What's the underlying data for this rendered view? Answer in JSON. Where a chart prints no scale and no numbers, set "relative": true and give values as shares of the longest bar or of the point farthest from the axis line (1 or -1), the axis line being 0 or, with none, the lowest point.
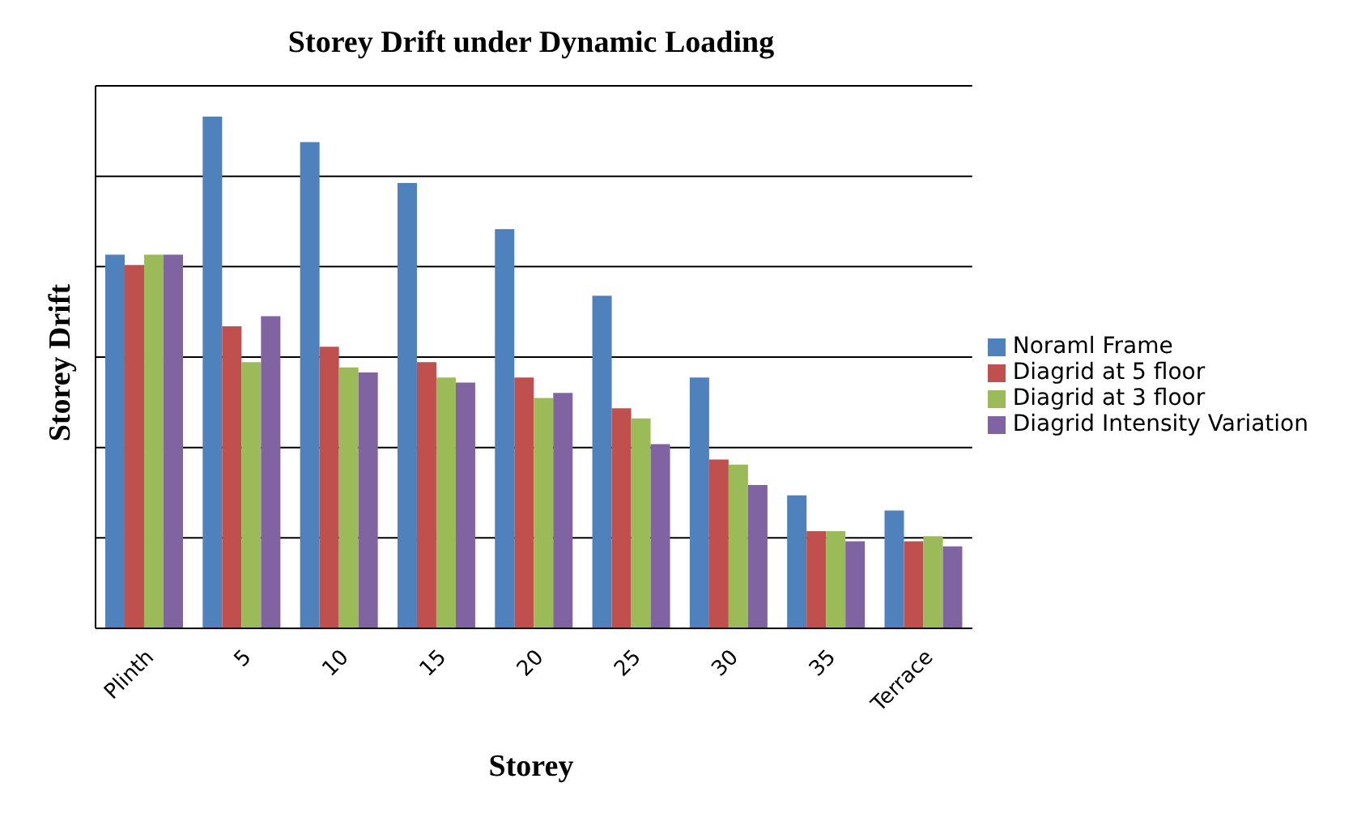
{
  "chart_data": {
    "type": "bar",
    "title": "Storey Drift under Dynamic Loading",
    "xlabel": "Storey",
    "ylabel": "Storey Drift",
    "relative": true,
    "categories": [
      "Plinth",
      "5",
      "10",
      "15",
      "20",
      "25",
      "30",
      "35",
      "Terrace"
    ],
    "series": [
      {
        "name": "Noraml Frame",
        "color": "#4f81bd",
        "values": [
          0.73,
          1,
          0.95,
          0.87,
          0.78,
          0.65,
          0.49,
          0.26,
          0.23
        ]
      },
      {
        "name": "Diagrid at 5 floor",
        "color": "#c0504d",
        "values": [
          0.71,
          0.59,
          0.55,
          0.52,
          0.49,
          0.43,
          0.33,
          0.19,
          0.17
        ]
      },
      {
        "name": "Diagrid at 3 floor",
        "color": "#9bbb59",
        "values": [
          0.73,
          0.52,
          0.51,
          0.49,
          0.45,
          0.41,
          0.32,
          0.19,
          0.18
        ]
      },
      {
        "name": "Diagrid Intensity Variation",
        "color": "#8064a2",
        "values": [
          0.73,
          0.61,
          0.5,
          0.48,
          0.46,
          0.36,
          0.28,
          0.17,
          0.16
        ]
      }
    ],
    "grid": "y",
    "legend": "right"
  }
}
